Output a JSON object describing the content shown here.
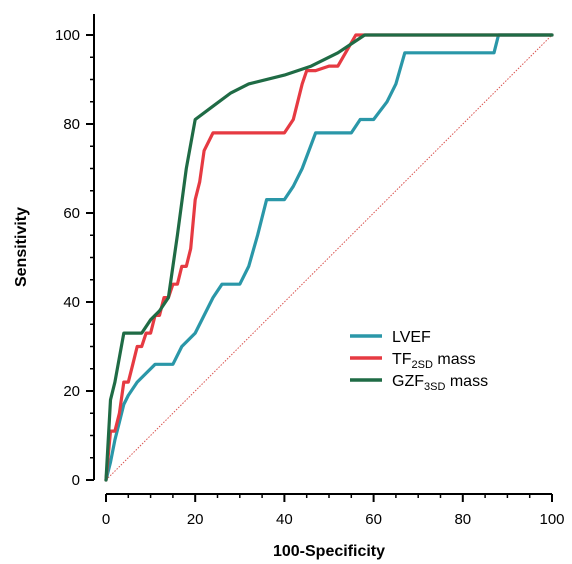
{
  "chart_data": {
    "type": "line",
    "xlabel": "100-Specificity",
    "ylabel": "Sensitivity",
    "xlim": [
      0,
      100
    ],
    "ylim": [
      0,
      100
    ],
    "x_ticks": [
      0,
      20,
      40,
      60,
      80,
      100
    ],
    "y_ticks": [
      0,
      20,
      40,
      60,
      80,
      100
    ],
    "grid": false,
    "legend_position": "center-right",
    "reference_line": {
      "x": [
        0,
        100
      ],
      "y": [
        0,
        100
      ],
      "color": "#d9534f",
      "style": "dotted"
    },
    "series": [
      {
        "name": "LVEF",
        "color": "#2a97a8",
        "x": [
          0,
          1,
          2,
          3,
          4,
          5,
          7,
          9,
          11,
          12,
          15,
          17,
          20,
          22,
          24,
          26,
          28,
          30,
          32,
          34,
          36,
          38,
          40,
          42,
          44,
          47,
          50,
          52,
          55,
          57,
          60,
          63,
          65,
          67,
          87,
          88,
          100
        ],
        "y": [
          0,
          4,
          9,
          13,
          17,
          19,
          22,
          24,
          26,
          26,
          26,
          30,
          33,
          37,
          41,
          44,
          44,
          44,
          48,
          55,
          63,
          63,
          63,
          66,
          70,
          78,
          78,
          78,
          78,
          81,
          81,
          85,
          89,
          96,
          96,
          100,
          100
        ]
      },
      {
        "name": "TF2SD mass",
        "name_main": "TF",
        "name_sub": "2SD",
        "name_suffix": " mass",
        "color": "#e63a42",
        "x": [
          0,
          1,
          2,
          3,
          4,
          5,
          6,
          7,
          8,
          9,
          10,
          11,
          12,
          13,
          14,
          15,
          16,
          17,
          18,
          19,
          20,
          21,
          22,
          24,
          26,
          28,
          30,
          36,
          38,
          40,
          42,
          44,
          45,
          47,
          50,
          52,
          56,
          60,
          80,
          100
        ],
        "y": [
          0,
          11,
          11,
          15,
          22,
          22,
          26,
          30,
          30,
          33,
          33,
          37,
          37,
          41,
          41,
          44,
          44,
          48,
          48,
          52,
          63,
          67,
          74,
          78,
          78,
          78,
          78,
          78,
          78,
          78,
          81,
          89,
          92,
          92,
          93,
          93,
          100,
          100,
          100,
          100
        ]
      },
      {
        "name": "GZF3SD mass",
        "name_main": "GZF",
        "name_sub": "3SD",
        "name_suffix": " mass",
        "color": "#1f6b45",
        "x": [
          0,
          1,
          1.5,
          2,
          4,
          6,
          8,
          10,
          12,
          14,
          16,
          18,
          20,
          24,
          28,
          32,
          40,
          46,
          52,
          58,
          60,
          100
        ],
        "y": [
          0,
          18,
          20,
          22,
          33,
          33,
          33,
          36,
          38,
          41,
          55,
          70,
          81,
          84,
          87,
          89,
          91,
          93,
          96,
          100,
          100,
          100
        ]
      }
    ]
  }
}
